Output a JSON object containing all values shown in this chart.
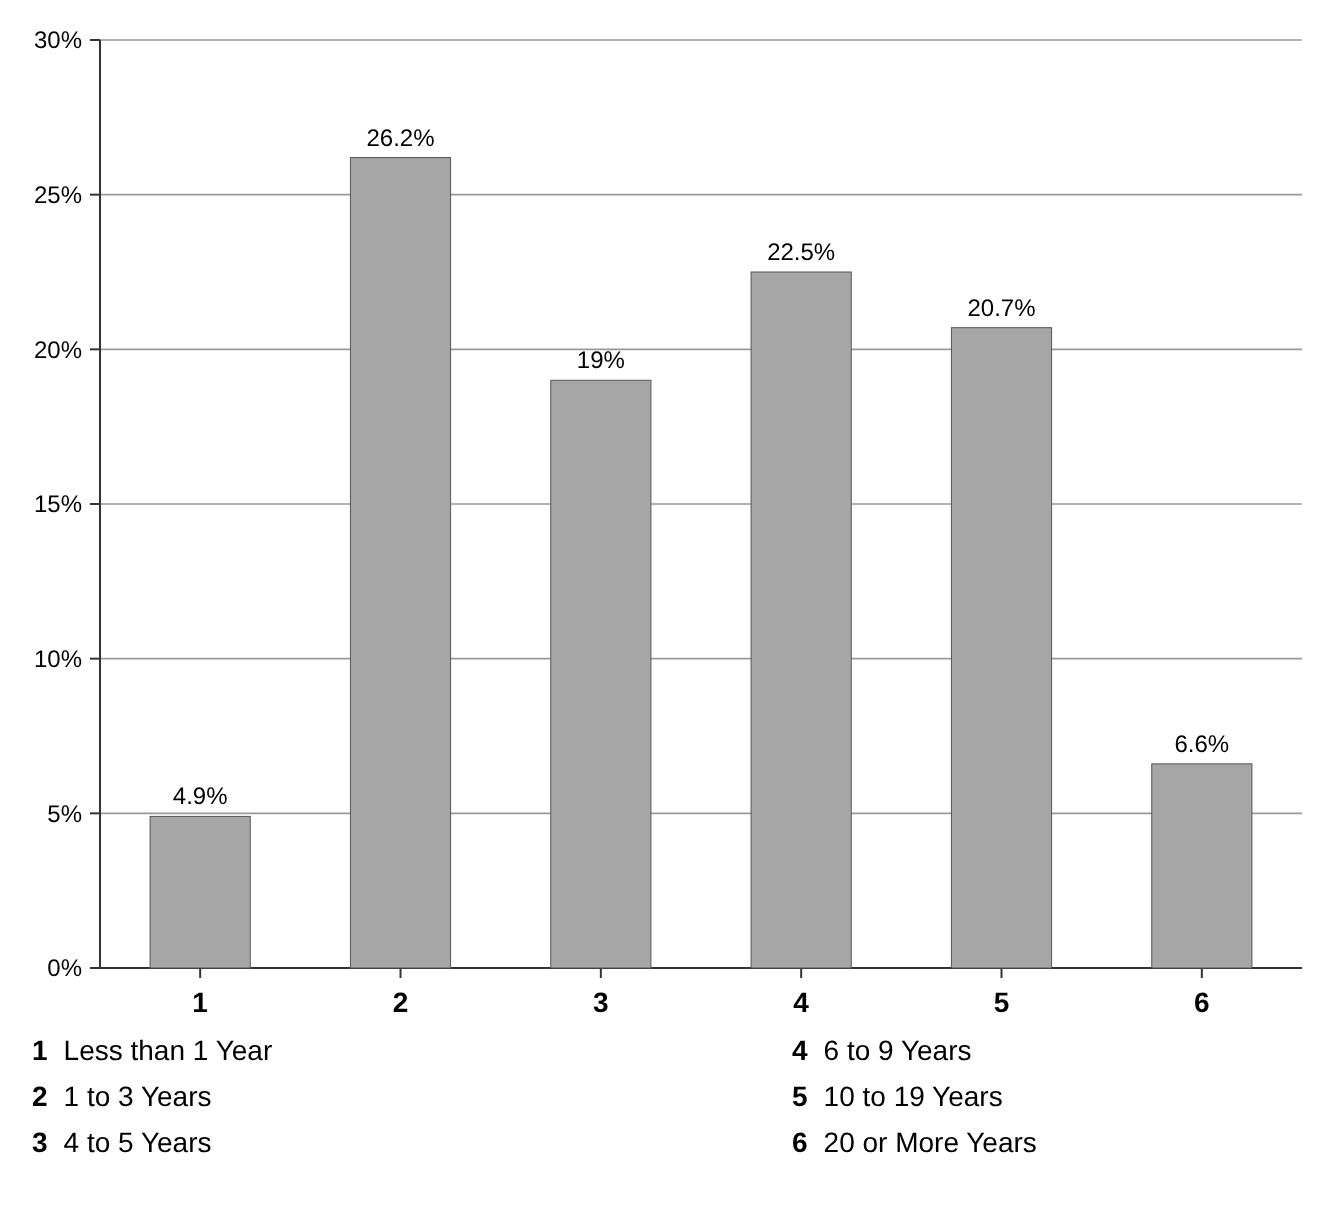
{
  "chart_data": {
    "type": "bar",
    "categories": [
      "1",
      "2",
      "3",
      "4",
      "5",
      "6"
    ],
    "values": [
      4.9,
      26.2,
      19,
      22.5,
      20.7,
      6.6
    ],
    "color": "#a6a6a6",
    "value_labels": [
      "4.9%",
      "26.2%",
      "19%",
      "22.5%",
      "20.7%",
      "6.6%"
    ],
    "ylim": [
      0,
      30
    ],
    "yticks": [
      {
        "value": 0,
        "label": "0%"
      },
      {
        "value": 5,
        "label": "5%"
      },
      {
        "value": 10,
        "label": "10%"
      },
      {
        "value": 15,
        "label": "15%"
      },
      {
        "value": 20,
        "label": "20%"
      },
      {
        "value": 25,
        "label": "25%"
      },
      {
        "value": 30,
        "label": "30%"
      }
    ],
    "grid": "y",
    "annotations": [
      "1 Less than 1 Year",
      "2 1 to 3 Years",
      "3 4 to 5 Years",
      "4 6 to 9 Years",
      "5 10 to 19 Years",
      "6 20 or More Years"
    ]
  }
}
